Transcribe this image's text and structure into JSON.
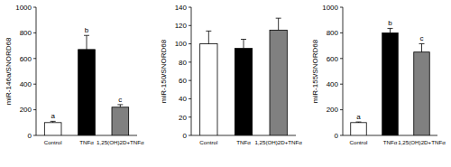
{
  "chart_data": [
    {
      "type": "bar",
      "y_label": "miR-146a/SNORD68",
      "categories": [
        "Control",
        "TNFα",
        "1,25(OH)2D+TNFα"
      ],
      "values": [
        100,
        670,
        220
      ],
      "errors": [
        10,
        110,
        20
      ],
      "colors": [
        "#ffffff",
        "#000000",
        "#808080"
      ],
      "annotations": [
        "a",
        "b",
        "c"
      ],
      "ylim": [
        0,
        1000
      ],
      "yticks": [
        0,
        200,
        400,
        600,
        800,
        1000
      ],
      "grid": false
    },
    {
      "type": "bar",
      "y_label": "miR-150/SNORD68",
      "categories": [
        "Control",
        "TNFα",
        "1,25(OH)2D+TNFα"
      ],
      "values": [
        100,
        95,
        115
      ],
      "errors": [
        14,
        10,
        13
      ],
      "colors": [
        "#ffffff",
        "#000000",
        "#808080"
      ],
      "ylim": [
        0,
        140
      ],
      "yticks": [
        0,
        20,
        40,
        60,
        80,
        100,
        120,
        140
      ],
      "grid": false
    },
    {
      "type": "bar",
      "y_label": "miR-155/SNORD68",
      "categories": [
        "Control",
        "TNFα",
        "1,25(OH)2D+TNFα"
      ],
      "values": [
        100,
        800,
        650
      ],
      "errors": [
        5,
        35,
        65
      ],
      "colors": [
        "#ffffff",
        "#000000",
        "#808080"
      ],
      "annotations": [
        "a",
        "b",
        "c"
      ],
      "ylim": [
        0,
        1000
      ],
      "yticks": [
        0,
        200,
        400,
        600,
        800,
        1000
      ],
      "grid": false
    }
  ]
}
